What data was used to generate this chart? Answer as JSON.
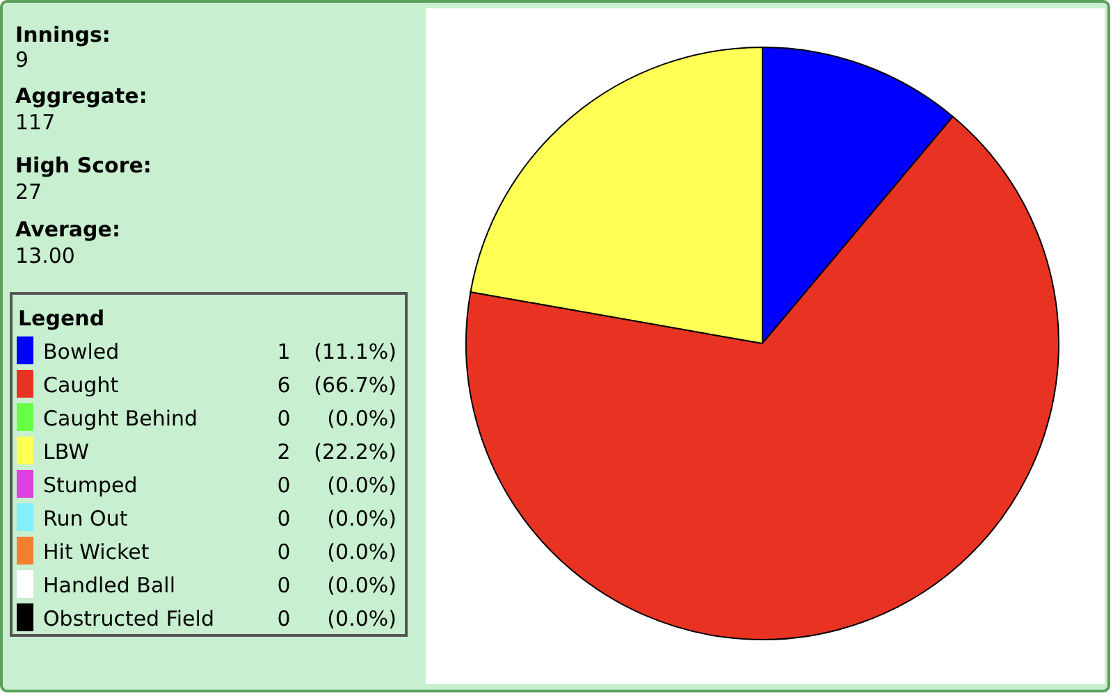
{
  "chart_data": {
    "type": "pie",
    "legend_title": "Legend",
    "legend": "left",
    "categories": [
      "Bowled",
      "Caught",
      "Caught Behind",
      "LBW",
      "Stumped",
      "Run Out",
      "Hit Wicket",
      "Handled Ball",
      "Obstructed Field"
    ],
    "values": [
      1,
      6,
      0,
      2,
      0,
      0,
      0,
      0,
      0
    ],
    "value_labels": [
      "1 (11.1%)",
      "6 (66.7%)",
      "0 (0.0%)",
      "2 (22.2%)",
      "0 (0.0%)",
      "0 (0.0%)",
      "0 (0.0%)",
      "0 (0.0%)",
      "0 (0.0%)"
    ],
    "colors": [
      "#0000ff",
      "#e83323",
      "#66ff44",
      "#ffff55",
      "#e040e0",
      "#80f0ff",
      "#f08030",
      "#ffffff",
      "#000000"
    ],
    "annotations": [
      "Innings:",
      "9",
      "Aggregate:",
      "117",
      "High Score:",
      "27",
      "Average:",
      "13.00"
    ]
  }
}
